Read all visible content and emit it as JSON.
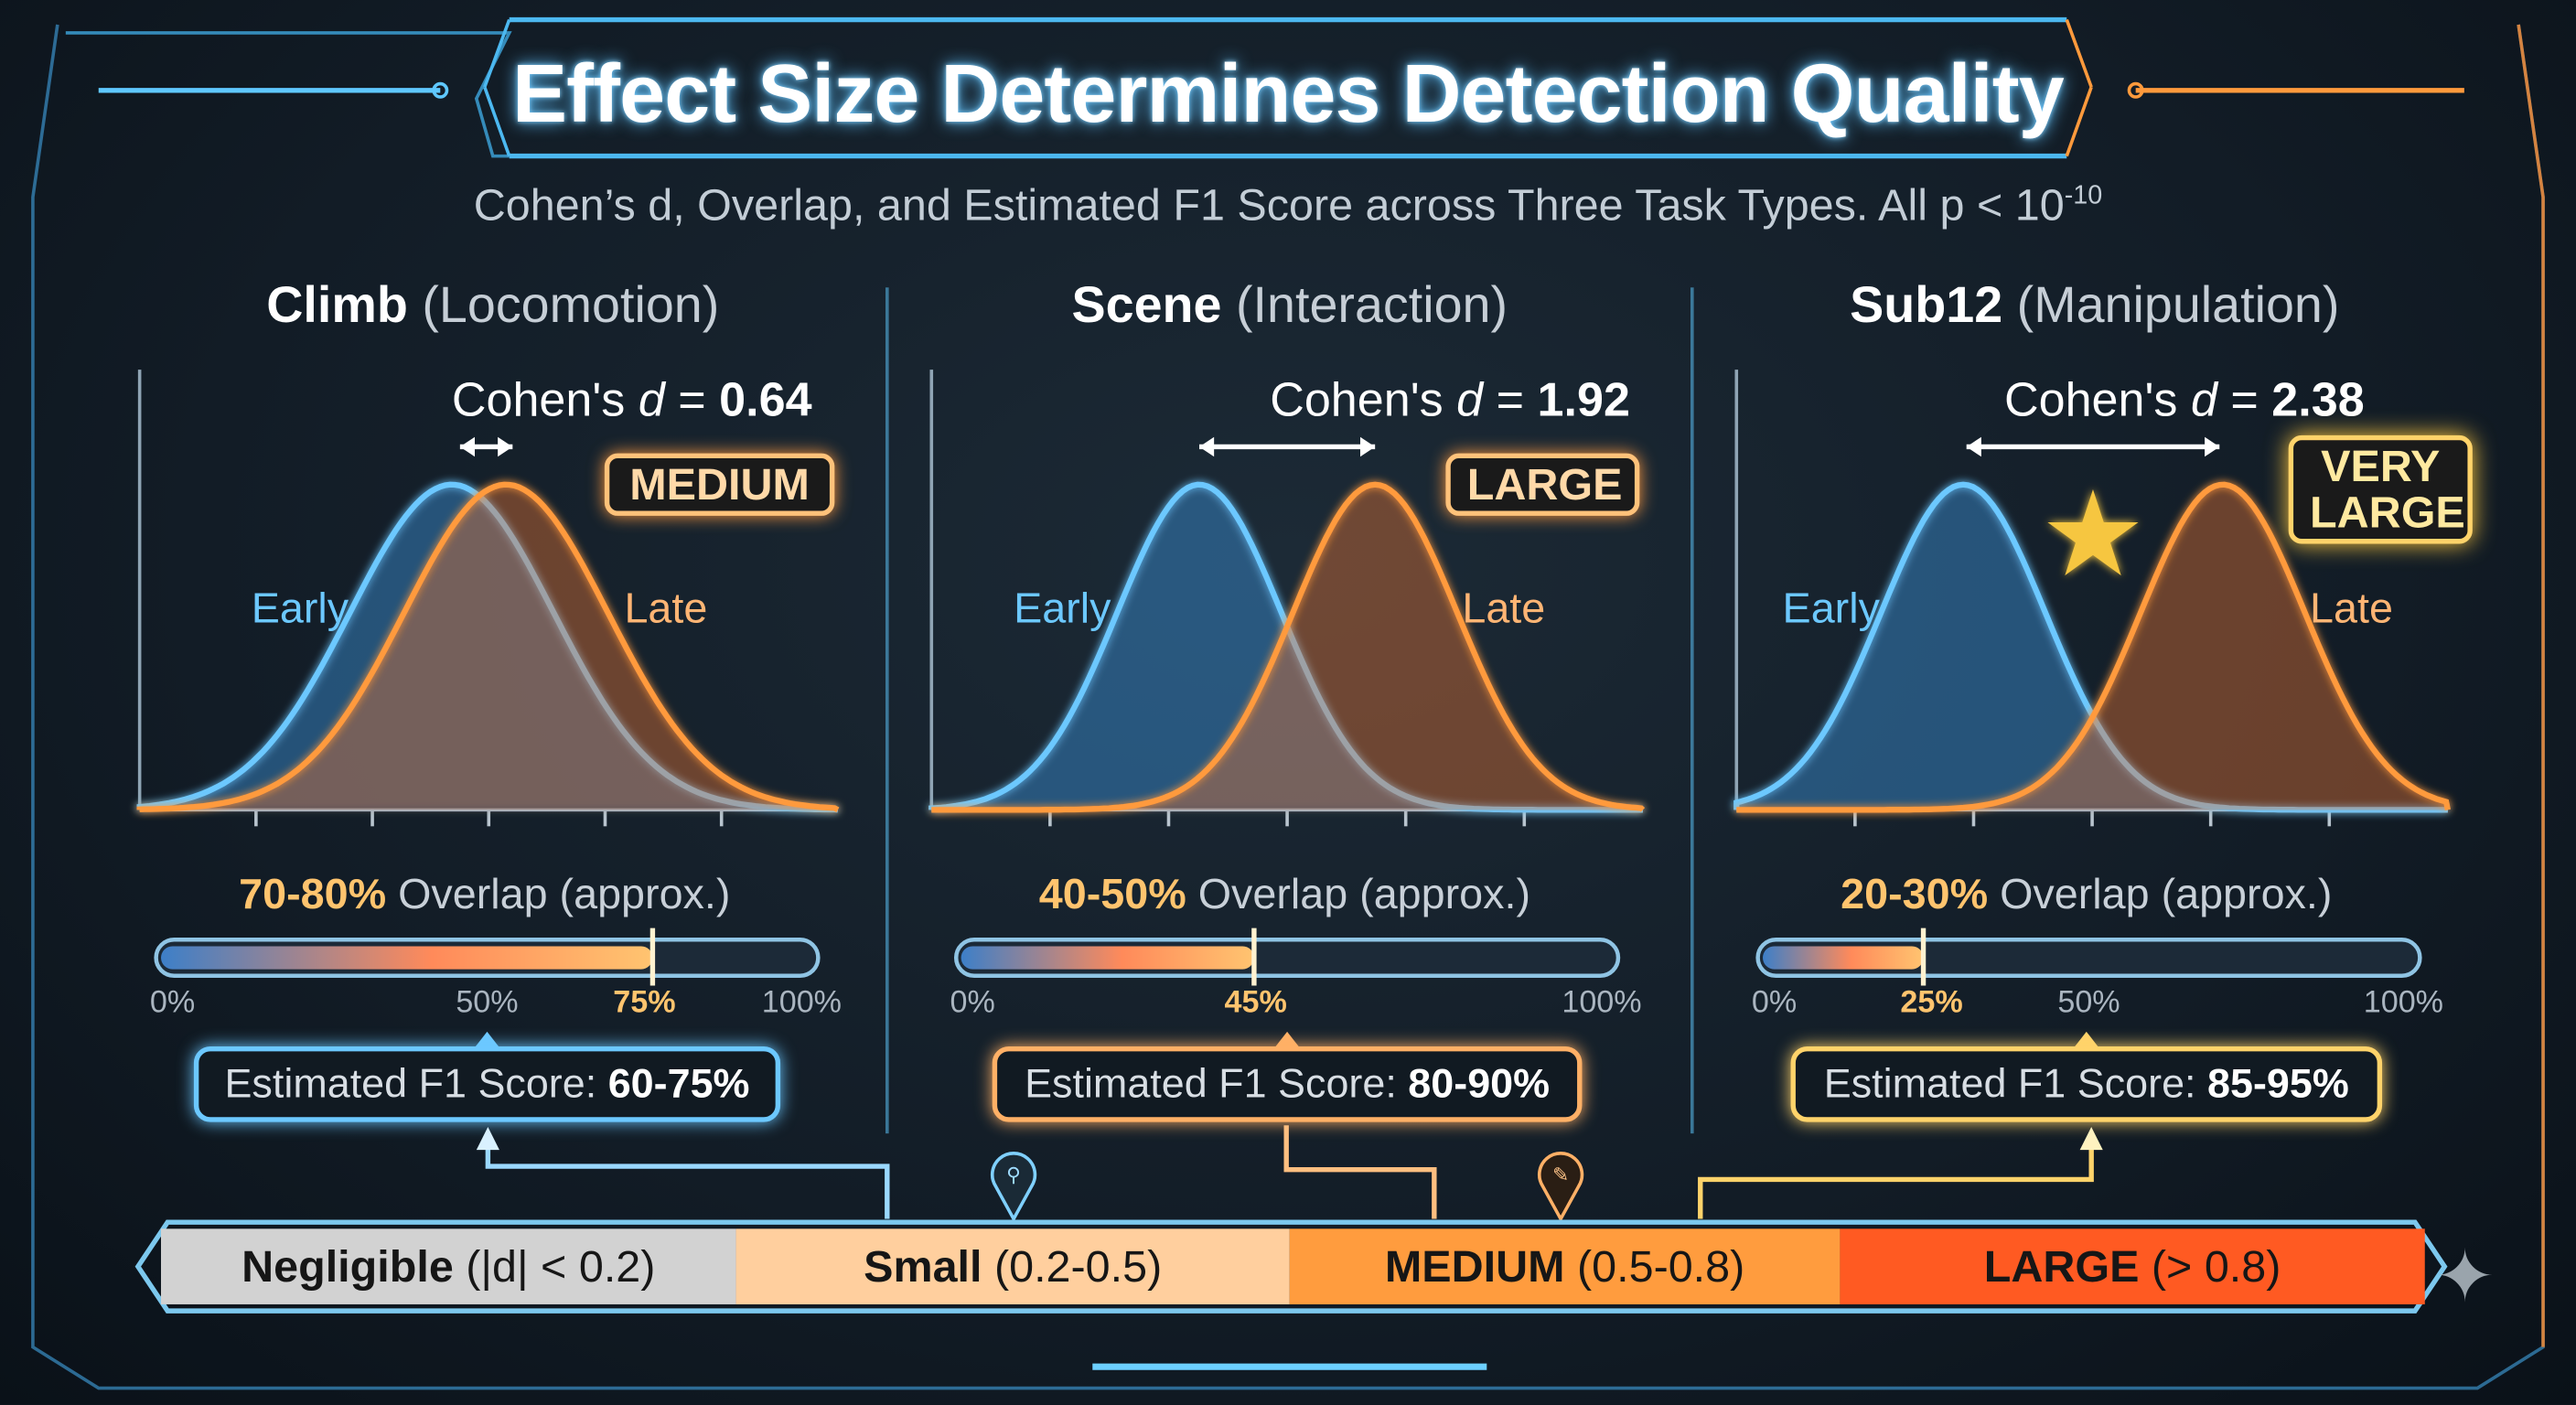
{
  "title": "Effect Size Determines Detection Quality",
  "subtitle": {
    "text": "Cohen’s d, Overlap, and Estimated F1 Score across Three Task Types. All p < 10",
    "exponent": "-10"
  },
  "colors": {
    "early": "#6cc8ff",
    "late": "#ff9a3c",
    "blue_box": "#6cc8ff",
    "orange_box": "#ffb066",
    "yellow_box": "#ffd36a"
  },
  "chart_data": [
    {
      "type": "area",
      "task": "Climb",
      "category": "Locomotion",
      "cohens_d": 0.64,
      "effect_label": "MEDIUM",
      "series": [
        {
          "name": "Early"
        },
        {
          "name": "Late"
        }
      ],
      "overlap_text": "70-80%",
      "overlap_marker_pct": 75,
      "overlap_ticks": [
        "0%",
        "50%",
        "75%",
        "100%"
      ],
      "overlap_tick_values": [
        0,
        50,
        75,
        100
      ],
      "f1": "60-75%"
    },
    {
      "type": "area",
      "task": "Scene",
      "category": "Interaction",
      "cohens_d": 1.92,
      "effect_label": "LARGE",
      "series": [
        {
          "name": "Early"
        },
        {
          "name": "Late"
        }
      ],
      "overlap_text": "40-50%",
      "overlap_marker_pct": 45,
      "overlap_ticks": [
        "0%",
        "45%",
        "100%"
      ],
      "overlap_tick_values": [
        0,
        45,
        100
      ],
      "f1": "80-90%"
    },
    {
      "type": "area",
      "task": "Sub12",
      "category": "Manipulation",
      "cohens_d": 2.38,
      "effect_label": "VERY LARGE",
      "series": [
        {
          "name": "Early"
        },
        {
          "name": "Late"
        }
      ],
      "overlap_text": "20-30%",
      "overlap_marker_pct": 25,
      "overlap_ticks": [
        "0%",
        "25%",
        "50%",
        "100%"
      ],
      "overlap_tick_values": [
        0,
        25,
        50,
        100
      ],
      "f1": "85-95%"
    }
  ],
  "panels": [
    {
      "name": "Climb",
      "paren": "(Locomotion)",
      "d_prefix": "Cohen's ",
      "d_sym": "d",
      "d_eq": " = ",
      "d_val": "0.64",
      "badge": "MEDIUM",
      "early": "Early",
      "late": "Late",
      "ovl_pct": "70-80%",
      "ovl_rest": " Overlap (approx.)",
      "f1_label": "Estimated F1 Score: ",
      "f1_val": "60-75%"
    },
    {
      "name": "Scene",
      "paren": "(Interaction)",
      "d_prefix": "Cohen's ",
      "d_sym": "d",
      "d_eq": " = ",
      "d_val": "1.92",
      "badge": "LARGE",
      "early": "Early",
      "late": "Late",
      "ovl_pct": "40-50%",
      "ovl_rest": " Overlap (approx.)",
      "f1_label": "Estimated F1 Score: ",
      "f1_val": "80-90%"
    },
    {
      "name": "Sub12",
      "paren": "(Manipulation)",
      "d_prefix": "Cohen's ",
      "d_sym": "d",
      "d_eq": " = ",
      "d_val": "2.38",
      "badge": "VERY LARGE",
      "early": "Early",
      "late": "Late",
      "ovl_pct": "20-30%",
      "ovl_rest": " Overlap (approx.)",
      "f1_label": "Estimated F1 Score: ",
      "f1_val": "85-95%"
    }
  ],
  "scale": [
    {
      "bold": "Negligible",
      "rest": " (|d| < 0.2)",
      "color": "#d2d2d2"
    },
    {
      "bold": "Small",
      "rest": " (0.2-0.5)",
      "color": "#ffcf9e"
    },
    {
      "bold": "MEDIUM",
      "rest": " (0.5-0.8)",
      "color": "#ff9c3e"
    },
    {
      "bold": "LARGE",
      "rest": " (> 0.8)",
      "color": "#ff5a22"
    }
  ],
  "icons": {
    "star": "star-icon",
    "pins": [
      "walking-pin-icon",
      "hand-tool-pin-icon"
    ],
    "sparkle": "sparkle-icon"
  }
}
